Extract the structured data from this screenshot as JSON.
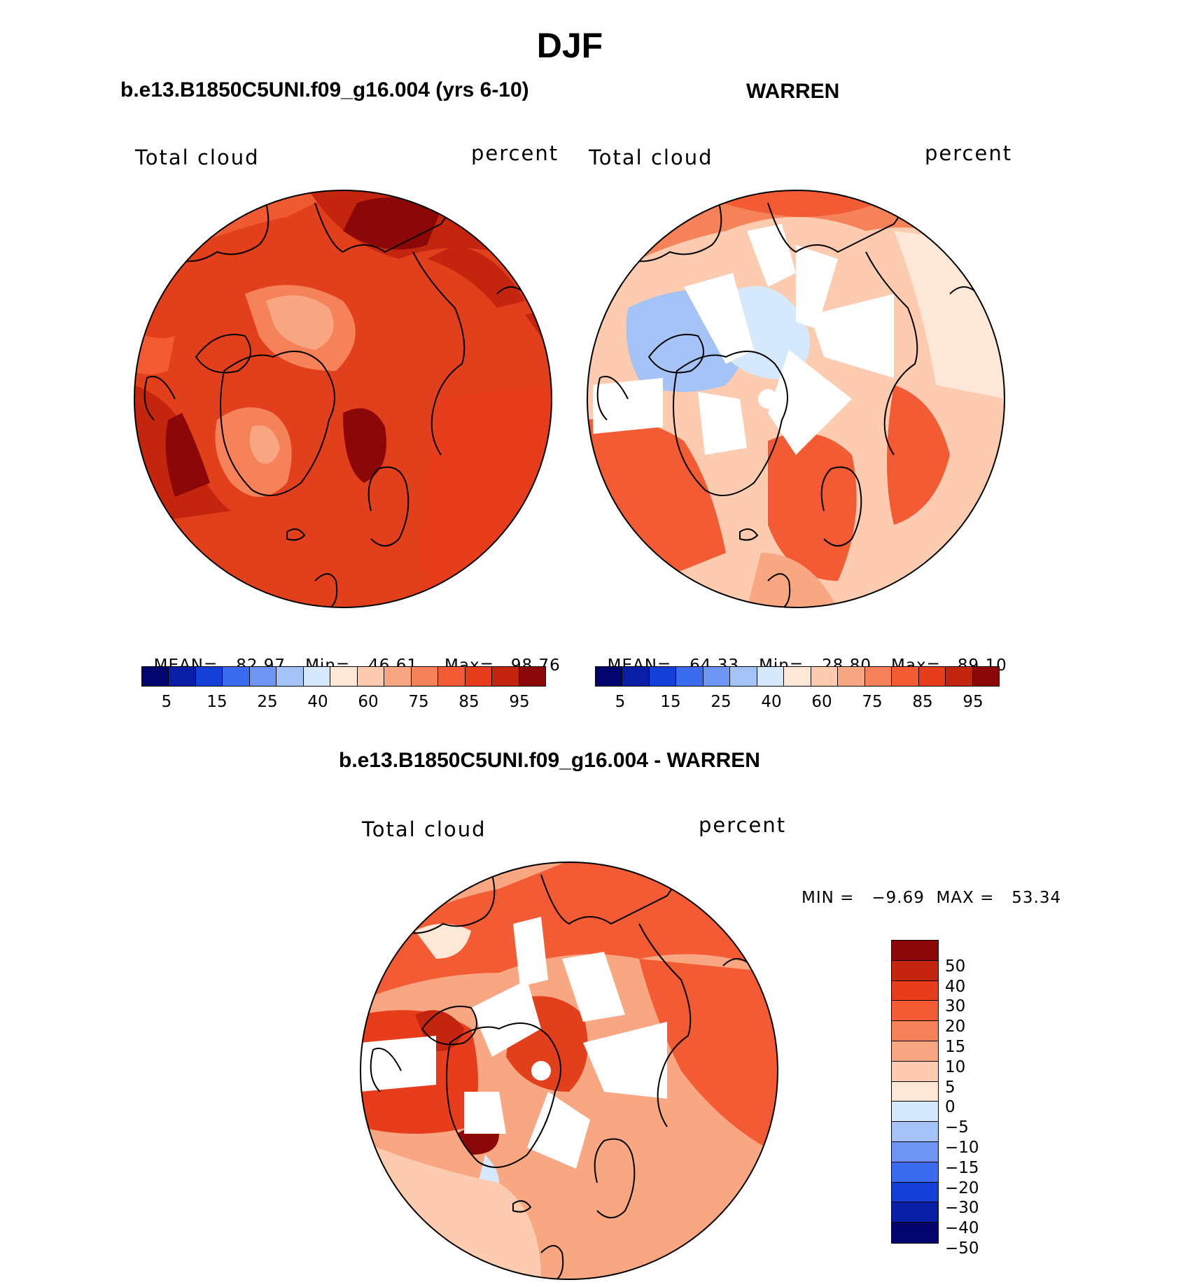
{
  "figure": {
    "season": "DJF",
    "left_title": "b.e13.B1850C5UNI.f09_g16.004 (yrs 6-10)",
    "right_title": "WARREN",
    "diff_title": "b.e13.B1850C5UNI.f09_g16.004 - WARREN"
  },
  "panels": {
    "model": {
      "variable": "Total cloud",
      "units": "percent",
      "mean_label": "MEAN=",
      "mean": "82.97",
      "min_label": "Min=",
      "min": "46.61",
      "max_label": "Max=",
      "max": "98.76"
    },
    "obs": {
      "variable": "Total cloud",
      "units": "percent",
      "mean_label": "MEAN=",
      "mean": "64.33",
      "min_label": "Min=",
      "min": "28.80",
      "max_label": "Max=",
      "max": "89.10"
    },
    "diff": {
      "variable": "Total cloud",
      "units": "percent",
      "minmax": "MIN =   −9.69  MAX =   53.34"
    }
  },
  "colorbars": {
    "abs": {
      "ticks": [
        "5",
        "15",
        "25",
        "40",
        "60",
        "75",
        "85",
        "95"
      ],
      "colors": [
        "#03036e",
        "#0a1fa6",
        "#1440d8",
        "#3b6cf0",
        "#6f95f5",
        "#a6c3f8",
        "#d6e8fb",
        "#fde8d8",
        "#fccbb0",
        "#f9a683",
        "#f6825a",
        "#f25b33",
        "#e73d1c",
        "#c4250f",
        "#8c0808"
      ]
    },
    "diff": {
      "ticks": [
        "50",
        "40",
        "30",
        "20",
        "15",
        "10",
        "5",
        "0",
        "−5",
        "−10",
        "−15",
        "−20",
        "−30",
        "−40",
        "−50"
      ],
      "colors": [
        "#8c0808",
        "#c4250f",
        "#e73d1c",
        "#f25b33",
        "#f6825a",
        "#f9a683",
        "#fccbb0",
        "#fde8d8",
        "#d6e8fb",
        "#a6c3f8",
        "#6f95f5",
        "#3b6cf0",
        "#1440d8",
        "#0a1fa6",
        "#03036e"
      ]
    }
  }
}
